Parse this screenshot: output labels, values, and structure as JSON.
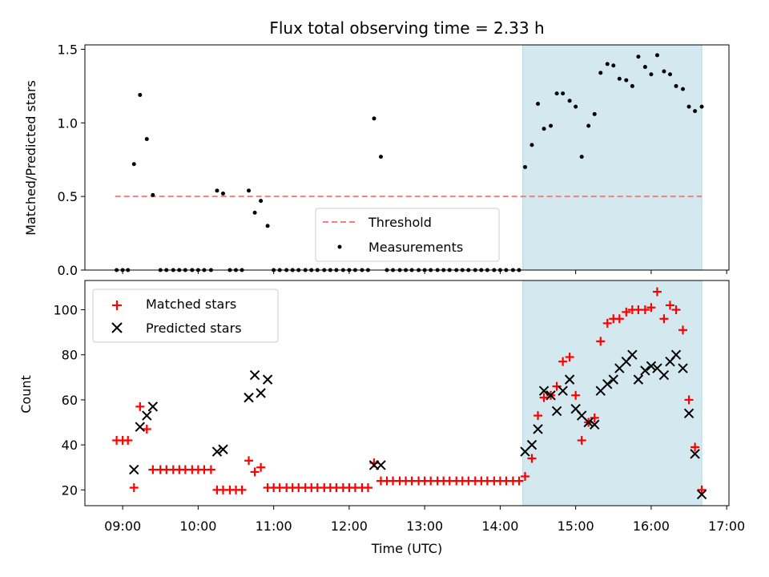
{
  "chart_data": [
    {
      "type": "scatter",
      "title": "Flux total observing time = 2.33 h",
      "xlabel": "",
      "ylabel": "Matched/Predicted stars",
      "xlim": [
        8.5,
        17.03
      ],
      "ylim": [
        0,
        1.53
      ],
      "yticks": [
        0,
        0.5,
        1.0,
        1.5
      ],
      "ytick_labels": [
        "0.0",
        "0.5",
        "1.0",
        "1.5"
      ],
      "grid": false,
      "legend_position": "lower-center",
      "shaded_region": {
        "x": [
          14.3,
          16.67
        ],
        "color": "#d4e9ef"
      },
      "threshold": {
        "name": "Threshold",
        "y": 0.5,
        "x": [
          8.9,
          16.67
        ],
        "style": "dashed",
        "color": "#f08080"
      },
      "series": [
        {
          "name": "Measurements",
          "marker": "dot",
          "color": "#000000",
          "x": [
            8.92,
            9.0,
            9.07,
            9.15,
            9.23,
            9.32,
            9.4,
            9.5,
            9.58,
            9.67,
            9.75,
            9.83,
            9.92,
            10.0,
            10.08,
            10.17,
            10.25,
            10.33,
            10.42,
            10.5,
            10.58,
            10.67,
            10.75,
            10.83,
            10.92,
            11.0,
            11.08,
            11.17,
            11.25,
            11.33,
            11.42,
            11.5,
            11.58,
            11.67,
            11.75,
            11.83,
            11.92,
            12.0,
            12.08,
            12.17,
            12.25,
            12.33,
            12.42,
            12.5,
            12.58,
            12.67,
            12.75,
            12.83,
            12.92,
            13.0,
            13.08,
            13.17,
            13.25,
            13.33,
            13.42,
            13.5,
            13.58,
            13.67,
            13.75,
            13.83,
            13.92,
            14.0,
            14.08,
            14.17,
            14.25,
            14.33,
            14.42,
            14.5,
            14.58,
            14.67,
            14.75,
            14.83,
            14.92,
            15.0,
            15.08,
            15.17,
            15.25,
            15.33,
            15.42,
            15.5,
            15.58,
            15.67,
            15.75,
            15.83,
            15.92,
            16.0,
            16.08,
            16.17,
            16.25,
            16.33,
            16.42,
            16.5,
            16.58,
            16.67
          ],
          "y": [
            0.0,
            0.0,
            0.0,
            0.72,
            1.19,
            0.89,
            0.51,
            0.0,
            0.0,
            0.0,
            0.0,
            0.0,
            0.0,
            0.0,
            0.0,
            0.0,
            0.54,
            0.52,
            0.0,
            0.0,
            0.0,
            0.54,
            0.39,
            0.47,
            0.3,
            0.0,
            0.0,
            0.0,
            0.0,
            0.0,
            0.0,
            0.0,
            0.0,
            0.0,
            0.0,
            0.0,
            0.0,
            0.0,
            0.0,
            0.0,
            0.0,
            1.03,
            0.77,
            0.0,
            0.0,
            0.0,
            0.0,
            0.0,
            0.0,
            0.0,
            0.0,
            0.0,
            0.0,
            0.0,
            0.0,
            0.0,
            0.0,
            0.0,
            0.0,
            0.0,
            0.0,
            0.0,
            0.0,
            0.0,
            0.0,
            0.7,
            0.85,
            1.13,
            0.96,
            0.98,
            1.2,
            1.2,
            1.15,
            1.11,
            0.77,
            0.98,
            1.06,
            1.34,
            1.4,
            1.39,
            1.3,
            1.29,
            1.25,
            1.45,
            1.38,
            1.33,
            1.46,
            1.35,
            1.33,
            1.25,
            1.23,
            1.11,
            1.08,
            1.11
          ]
        }
      ]
    },
    {
      "type": "scatter",
      "title": "",
      "xlabel": "Time (UTC)",
      "ylabel": "Count",
      "xlim": [
        8.5,
        17.03
      ],
      "ylim": [
        13,
        113
      ],
      "xticks": [
        9,
        10,
        11,
        12,
        13,
        14,
        15,
        16,
        17
      ],
      "xtick_labels": [
        "09:00",
        "10:00",
        "11:00",
        "12:00",
        "13:00",
        "14:00",
        "15:00",
        "16:00",
        "17:00"
      ],
      "yticks": [
        20,
        40,
        60,
        80,
        100
      ],
      "ytick_labels": [
        "20",
        "40",
        "60",
        "80",
        "100"
      ],
      "grid": false,
      "legend_position": "upper-left",
      "shaded_region": {
        "x": [
          14.3,
          16.67
        ],
        "color": "#d4e9ef"
      },
      "series": [
        {
          "name": "Matched stars",
          "marker": "plus",
          "color": "#ff0000",
          "x": [
            8.92,
            9.0,
            9.07,
            9.15,
            9.23,
            9.32,
            9.4,
            9.5,
            9.58,
            9.67,
            9.75,
            9.83,
            9.92,
            10.0,
            10.08,
            10.17,
            10.25,
            10.33,
            10.42,
            10.5,
            10.58,
            10.67,
            10.75,
            10.83,
            10.92,
            11.0,
            11.08,
            11.17,
            11.25,
            11.33,
            11.42,
            11.5,
            11.58,
            11.67,
            11.75,
            11.83,
            11.92,
            12.0,
            12.08,
            12.17,
            12.25,
            12.33,
            12.42,
            12.5,
            12.58,
            12.67,
            12.75,
            12.83,
            12.92,
            13.0,
            13.08,
            13.17,
            13.25,
            13.33,
            13.42,
            13.5,
            13.58,
            13.67,
            13.75,
            13.83,
            13.92,
            14.0,
            14.08,
            14.17,
            14.25,
            14.33,
            14.42,
            14.5,
            14.58,
            14.67,
            14.75,
            14.83,
            14.92,
            15.0,
            15.08,
            15.17,
            15.25,
            15.33,
            15.42,
            15.5,
            15.58,
            15.67,
            15.75,
            15.83,
            15.92,
            16.0,
            16.08,
            16.17,
            16.25,
            16.33,
            16.42,
            16.5,
            16.58,
            16.67
          ],
          "y": [
            42,
            42,
            42,
            21,
            57,
            47,
            29,
            29,
            29,
            29,
            29,
            29,
            29,
            29,
            29,
            29,
            20,
            20,
            20,
            20,
            20,
            33,
            28,
            30,
            21,
            21,
            21,
            21,
            21,
            21,
            21,
            21,
            21,
            21,
            21,
            21,
            21,
            21,
            21,
            21,
            21,
            32,
            24,
            24,
            24,
            24,
            24,
            24,
            24,
            24,
            24,
            24,
            24,
            24,
            24,
            24,
            24,
            24,
            24,
            24,
            24,
            24,
            24,
            24,
            24,
            26,
            34,
            53,
            61,
            62,
            66,
            77,
            79,
            62,
            42,
            50,
            52,
            86,
            94,
            96,
            96,
            99,
            100,
            100,
            100,
            101,
            108,
            96,
            102,
            100,
            91,
            60,
            39,
            20
          ]
        },
        {
          "name": "Predicted stars",
          "marker": "x",
          "color": "#000000",
          "x": [
            9.15,
            9.23,
            9.32,
            9.4,
            10.25,
            10.33,
            10.67,
            10.75,
            10.83,
            10.92,
            12.33,
            12.42,
            14.33,
            14.42,
            14.5,
            14.58,
            14.67,
            14.75,
            14.83,
            14.92,
            15.0,
            15.08,
            15.17,
            15.25,
            15.33,
            15.42,
            15.5,
            15.58,
            15.67,
            15.75,
            15.83,
            15.92,
            16.0,
            16.08,
            16.17,
            16.25,
            16.33,
            16.42,
            16.5,
            16.58,
            16.67
          ],
          "y": [
            29,
            48,
            53,
            57,
            37,
            38,
            61,
            71,
            63,
            69,
            31,
            31,
            37,
            40,
            47,
            64,
            62,
            55,
            64,
            69,
            56,
            53,
            50,
            49,
            64,
            67,
            69,
            74,
            77,
            80,
            69,
            73,
            75,
            74,
            71,
            77,
            80,
            74,
            54,
            36,
            18
          ]
        }
      ]
    }
  ]
}
